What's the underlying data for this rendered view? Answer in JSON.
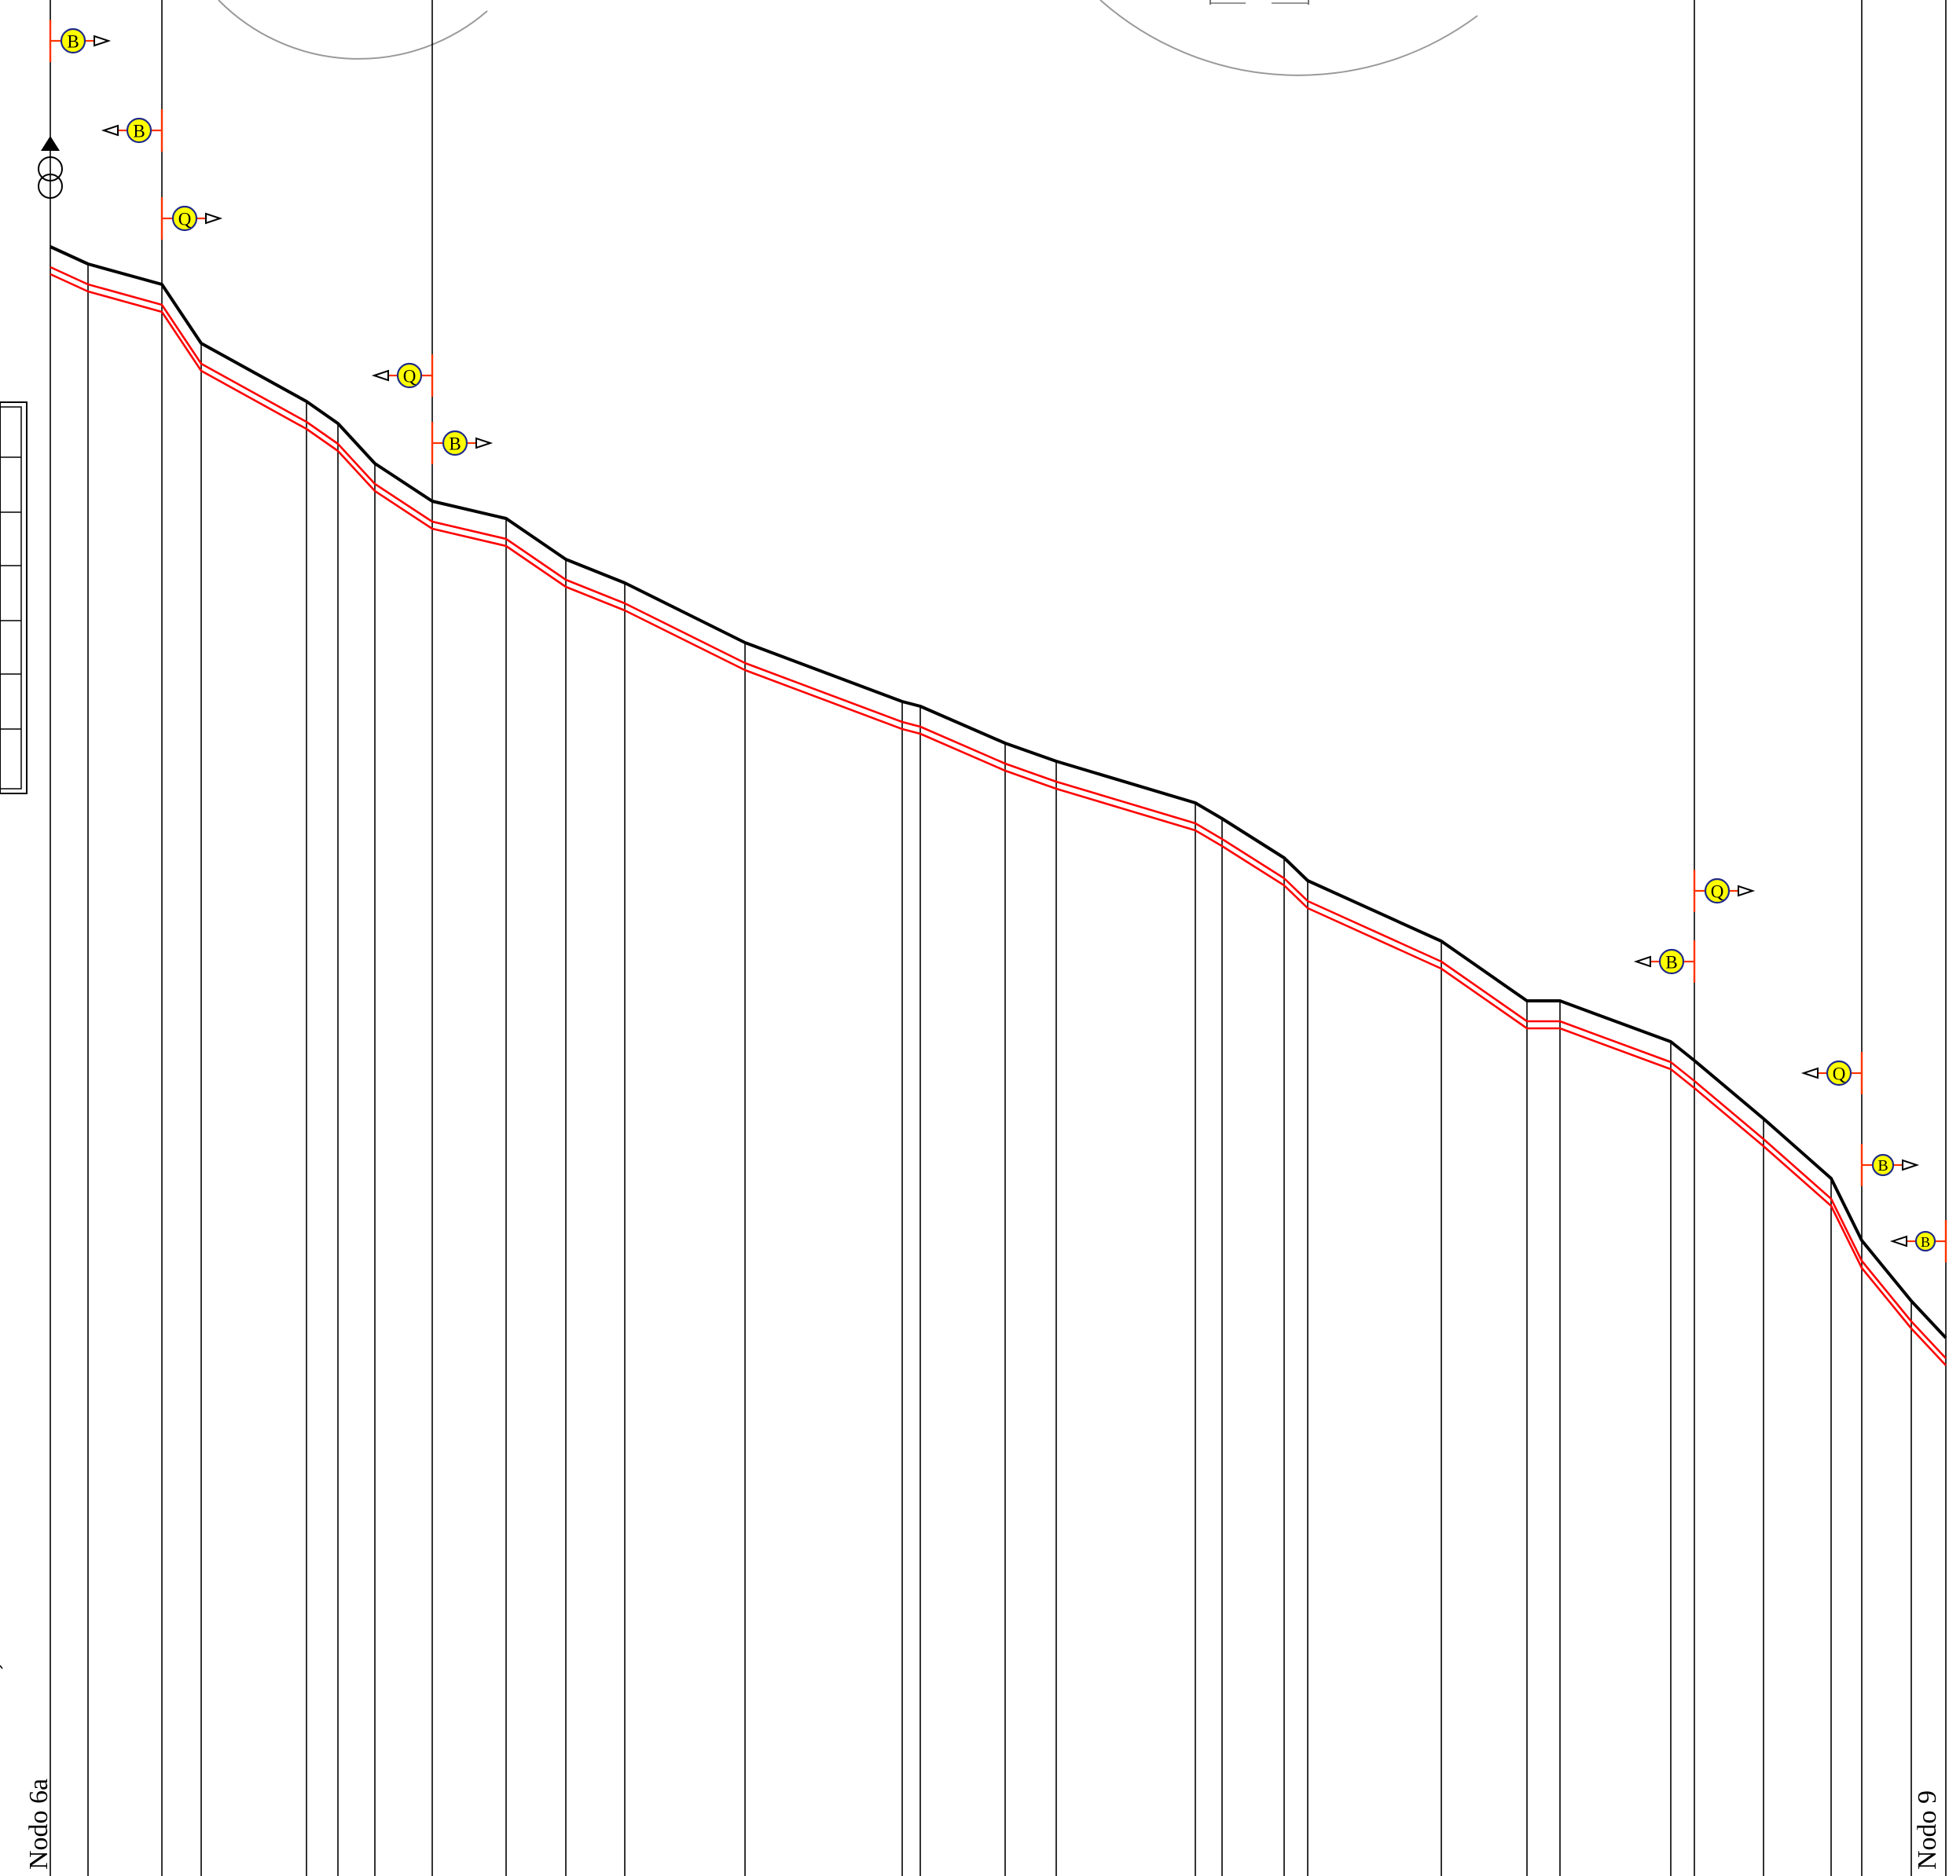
{
  "node_labels": {
    "start": "Nodo 6a",
    "end": "Nodo 9"
  },
  "marker_letters": {
    "b": "B",
    "q": "Q"
  },
  "colors": {
    "terrain_line": "#000000",
    "pipe_line": "#ff0000",
    "station_line": "#000000",
    "marker_fill": "#ffff00",
    "marker_stroke": "#1f2a8a",
    "marker_tick": "#ff3300",
    "circle_outline": "#999999"
  },
  "markers": [
    {
      "letter": "B",
      "direction": "right"
    },
    {
      "letter": "B",
      "direction": "left"
    },
    {
      "letter": "Q",
      "direction": "right"
    },
    {
      "letter": "Q",
      "direction": "left"
    },
    {
      "letter": "B",
      "direction": "right"
    },
    {
      "letter": "Q",
      "direction": "right"
    },
    {
      "letter": "B",
      "direction": "left"
    },
    {
      "letter": "Q",
      "direction": "left"
    },
    {
      "letter": "B",
      "direction": "right"
    },
    {
      "letter": "B",
      "direction": "left"
    }
  ],
  "icons": {
    "transformer": "transformer-symbol-icon",
    "arrow": "triangle-arrow-icon"
  }
}
